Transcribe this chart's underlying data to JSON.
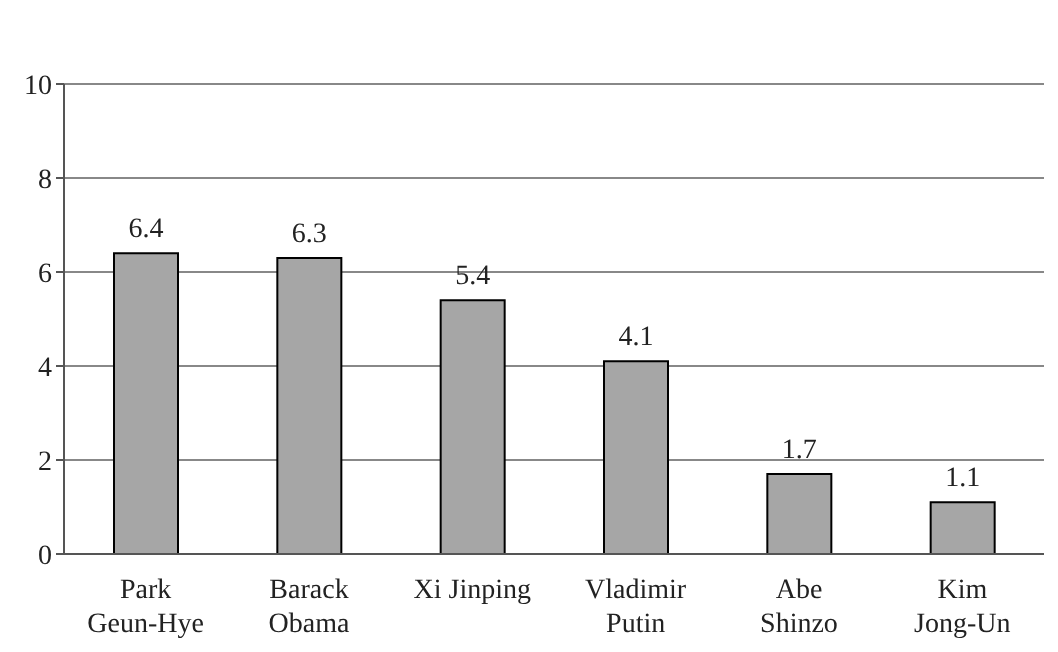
{
  "chart_data": {
    "type": "bar",
    "categories": [
      "Park\nGeun-Hye",
      "Barack\nObama",
      "Xi Jinping",
      "Vladimir\nPutin",
      "Abe\nShinzo",
      "Kim\nJong-Un"
    ],
    "values": [
      6.4,
      6.3,
      5.4,
      4.1,
      1.7,
      1.1
    ],
    "color": "#a6a6a6",
    "ylim": [
      0,
      10
    ],
    "yticks": [
      0,
      2,
      4,
      6,
      8,
      10
    ],
    "grid": "y",
    "data_labels": true
  }
}
